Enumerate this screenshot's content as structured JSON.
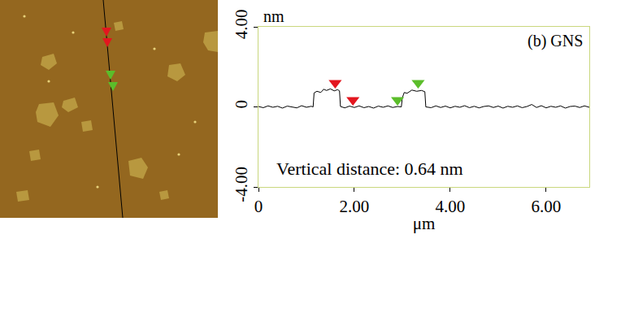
{
  "chart_data": {
    "type": "line",
    "x_label": "μm",
    "y_label": "nm",
    "annotations": [
      "(b) GNS",
      "Vertical distance: 0.64 nm"
    ],
    "x": [
      0,
      0.1,
      0.2,
      0.3,
      0.4,
      0.5,
      0.6,
      0.7,
      0.8,
      0.9,
      1.0,
      1.1,
      1.14,
      1.16,
      1.22,
      1.3,
      1.36,
      1.42,
      1.5,
      1.58,
      1.65,
      1.69,
      1.71,
      1.8,
      1.9,
      2.0,
      2.1,
      2.2,
      2.3,
      2.4,
      2.5,
      2.6,
      2.7,
      2.8,
      2.9,
      2.98,
      3.0,
      3.04,
      3.1,
      3.2,
      3.3,
      3.4,
      3.47,
      3.49,
      3.6,
      3.7,
      3.8,
      3.9,
      4.0,
      4.1,
      4.2,
      4.3,
      4.4,
      4.5,
      4.6,
      4.7,
      4.8,
      4.9,
      5.0,
      5.1,
      5.2,
      5.3,
      5.4,
      5.5,
      5.6,
      5.7,
      5.8,
      5.9,
      6.0,
      6.1,
      6.2,
      6.3,
      6.4,
      6.5,
      6.6,
      6.7,
      6.8,
      6.9
    ],
    "values": [
      0.02,
      -0.04,
      0.05,
      -0.02,
      0.03,
      -0.06,
      0.04,
      0.0,
      -0.05,
      0.06,
      -0.02,
      0.03,
      0.0,
      0.7,
      0.78,
      0.72,
      0.88,
      0.82,
      0.9,
      0.8,
      0.86,
      0.8,
      0.02,
      -0.05,
      0.04,
      -0.03,
      0.05,
      -0.04,
      0.02,
      -0.06,
      0.04,
      -0.02,
      0.05,
      -0.03,
      0.02,
      0.0,
      0.45,
      0.72,
      0.68,
      0.84,
      0.78,
      0.82,
      0.76,
      0.0,
      -0.04,
      0.05,
      -0.03,
      0.04,
      -0.05,
      0.03,
      -0.02,
      0.06,
      -0.04,
      0.03,
      -0.05,
      0.02,
      0.05,
      -0.03,
      0.04,
      -0.06,
      0.03,
      -0.02,
      0.05,
      -0.04,
      0.02,
      0.12,
      -0.03,
      0.06,
      -0.05,
      0.03,
      -0.02,
      0.05,
      -0.06,
      0.02,
      0.04,
      -0.03,
      0.05,
      -0.02
    ],
    "color": "#000000",
    "markers": [
      {
        "color": "#e3161f",
        "marker": "triangle-down",
        "x": [
          1.6,
          1.97
        ],
        "values": [
          1.2,
          0.35
        ]
      },
      {
        "color": "#5bbd2a",
        "marker": "triangle-down",
        "x": [
          2.9,
          3.33
        ],
        "values": [
          0.35,
          1.2
        ]
      }
    ],
    "xlim": [
      0,
      6.9
    ],
    "ylim": [
      -4,
      4
    ],
    "xticks": [
      0,
      {
        "value": 2,
        "label": "2.00"
      },
      {
        "value": 4,
        "label": "4.00"
      },
      {
        "value": 6,
        "label": "6.00"
      }
    ],
    "yticks": [
      {
        "value": -4,
        "label": "-4.00"
      },
      0,
      {
        "value": 4,
        "label": "4.00"
      }
    ],
    "grid": false
  }
}
